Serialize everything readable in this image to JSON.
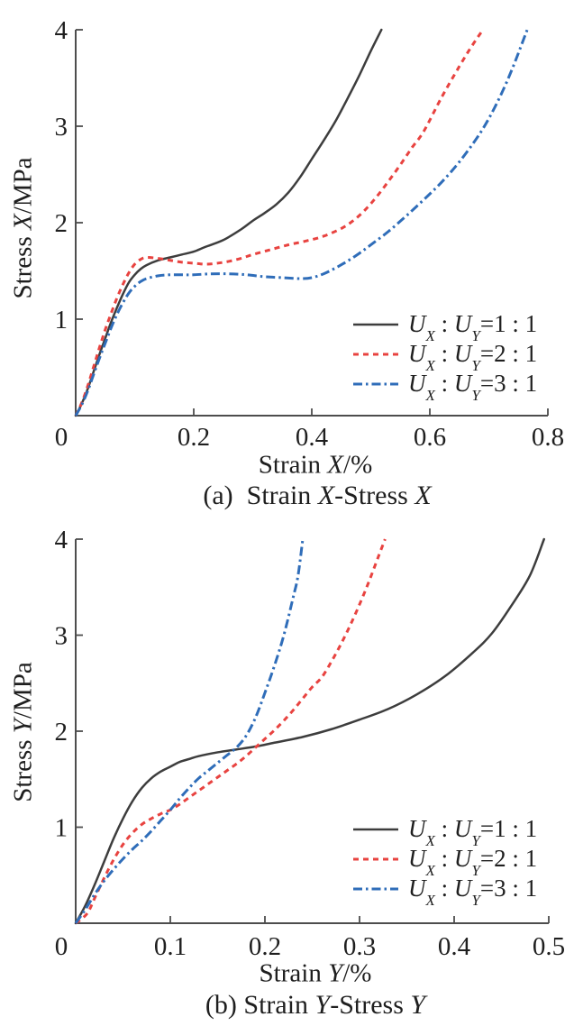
{
  "page": {
    "background": "#ffffff",
    "text_color": "#1f1f1f",
    "axis_color": "#4d4d4d"
  },
  "charts": [
    {
      "ylabel": {
        "pre": "Stress ",
        "var": "X",
        "post": "/MPa"
      },
      "xlabel": {
        "pre": "Strain ",
        "var": "X",
        "post": "/%"
      },
      "caption": {
        "prefix": "(a)  Strain ",
        "var1": "X",
        "mid": "-Stress ",
        "var2": "X"
      },
      "legend_items": [
        {
          "var1": "U",
          "sub1": "X",
          "sep": " : ",
          "var2": "U",
          "sub2": "Y",
          "value": "=1 : 1"
        },
        {
          "var1": "U",
          "sub1": "X",
          "sep": " : ",
          "var2": "U",
          "sub2": "Y",
          "value": "=2 : 1"
        },
        {
          "var1": "U",
          "sub1": "X",
          "sep": " : ",
          "var2": "U",
          "sub2": "Y",
          "value": "=3 : 1"
        }
      ]
    },
    {
      "ylabel": {
        "pre": "Stress ",
        "var": "Y",
        "post": "/MPa"
      },
      "xlabel": {
        "pre": "Strain ",
        "var": "Y",
        "post": "/%"
      },
      "caption": {
        "prefix": "(b) Strain ",
        "var1": "Y",
        "mid": "-Stress ",
        "var2": "Y"
      },
      "legend_items": [
        {
          "var1": "U",
          "sub1": "X",
          "sep": " : ",
          "var2": "U",
          "sub2": "Y",
          "value": "=1 : 1"
        },
        {
          "var1": "U",
          "sub1": "X",
          "sep": " : ",
          "var2": "U",
          "sub2": "Y",
          "value": "=2 : 1"
        },
        {
          "var1": "U",
          "sub1": "X",
          "sep": " : ",
          "var2": "U",
          "sub2": "Y",
          "value": "=3 : 1"
        }
      ]
    }
  ],
  "chart_data": [
    {
      "type": "line",
      "title": "(a) Strain X-Stress X",
      "xlabel": "Strain X/%",
      "ylabel": "Stress X/MPa",
      "xlim": [
        0,
        0.8
      ],
      "ylim": [
        0,
        4
      ],
      "x_ticks": [
        0,
        0.2,
        0.4,
        0.6,
        0.8
      ],
      "x_tick_labels": [
        "0",
        "0.2",
        "0.4",
        "0.6",
        "0.8"
      ],
      "y_ticks": [
        0,
        1,
        2,
        3,
        4
      ],
      "y_tick_labels": [
        "0",
        "1",
        "2",
        "3",
        "4"
      ],
      "grid": false,
      "legend_position": "inside lower right",
      "series": [
        {
          "name": "UX : UY=1 : 1",
          "line_style": "solid",
          "color": "#3d3d3d",
          "points": [
            [
              0,
              0
            ],
            [
              0.01,
              0.12
            ],
            [
              0.02,
              0.27
            ],
            [
              0.03,
              0.45
            ],
            [
              0.04,
              0.63
            ],
            [
              0.05,
              0.8
            ],
            [
              0.06,
              0.97
            ],
            [
              0.07,
              1.12
            ],
            [
              0.08,
              1.26
            ],
            [
              0.09,
              1.38
            ],
            [
              0.1,
              1.46
            ],
            [
              0.11,
              1.52
            ],
            [
              0.12,
              1.56
            ],
            [
              0.14,
              1.61
            ],
            [
              0.16,
              1.64
            ],
            [
              0.18,
              1.67
            ],
            [
              0.2,
              1.7
            ],
            [
              0.22,
              1.75
            ],
            [
              0.25,
              1.82
            ],
            [
              0.28,
              1.93
            ],
            [
              0.3,
              2.02
            ],
            [
              0.32,
              2.1
            ],
            [
              0.34,
              2.19
            ],
            [
              0.36,
              2.31
            ],
            [
              0.38,
              2.47
            ],
            [
              0.4,
              2.66
            ],
            [
              0.42,
              2.85
            ],
            [
              0.44,
              3.05
            ],
            [
              0.46,
              3.28
            ],
            [
              0.48,
              3.52
            ],
            [
              0.5,
              3.78
            ],
            [
              0.518,
              4.0
            ]
          ]
        },
        {
          "name": "UX : UY=2 : 1",
          "line_style": "dashed",
          "color": "#e84340",
          "points": [
            [
              0,
              0
            ],
            [
              0.01,
              0.13
            ],
            [
              0.02,
              0.3
            ],
            [
              0.03,
              0.5
            ],
            [
              0.04,
              0.7
            ],
            [
              0.05,
              0.89
            ],
            [
              0.06,
              1.06
            ],
            [
              0.07,
              1.22
            ],
            [
              0.08,
              1.36
            ],
            [
              0.09,
              1.48
            ],
            [
              0.1,
              1.57
            ],
            [
              0.11,
              1.62
            ],
            [
              0.12,
              1.64
            ],
            [
              0.14,
              1.63
            ],
            [
              0.16,
              1.61
            ],
            [
              0.18,
              1.59
            ],
            [
              0.2,
              1.58
            ],
            [
              0.22,
              1.57
            ],
            [
              0.24,
              1.58
            ],
            [
              0.26,
              1.6
            ],
            [
              0.28,
              1.63
            ],
            [
              0.3,
              1.67
            ],
            [
              0.33,
              1.72
            ],
            [
              0.36,
              1.77
            ],
            [
              0.39,
              1.81
            ],
            [
              0.42,
              1.86
            ],
            [
              0.45,
              1.94
            ],
            [
              0.47,
              2.02
            ],
            [
              0.49,
              2.13
            ],
            [
              0.51,
              2.27
            ],
            [
              0.53,
              2.43
            ],
            [
              0.55,
              2.6
            ],
            [
              0.57,
              2.78
            ],
            [
              0.59,
              2.95
            ],
            [
              0.62,
              3.3
            ],
            [
              0.65,
              3.62
            ],
            [
              0.67,
              3.82
            ],
            [
              0.69,
              4.0
            ]
          ]
        },
        {
          "name": "UX : UY=3 : 1",
          "line_style": "dash-dot",
          "color": "#2f6db9",
          "points": [
            [
              0,
              0
            ],
            [
              0.01,
              0.11
            ],
            [
              0.02,
              0.25
            ],
            [
              0.03,
              0.42
            ],
            [
              0.04,
              0.59
            ],
            [
              0.05,
              0.75
            ],
            [
              0.06,
              0.91
            ],
            [
              0.07,
              1.05
            ],
            [
              0.08,
              1.17
            ],
            [
              0.09,
              1.27
            ],
            [
              0.1,
              1.34
            ],
            [
              0.11,
              1.39
            ],
            [
              0.12,
              1.42
            ],
            [
              0.14,
              1.45
            ],
            [
              0.16,
              1.46
            ],
            [
              0.18,
              1.46
            ],
            [
              0.2,
              1.46
            ],
            [
              0.23,
              1.47
            ],
            [
              0.26,
              1.47
            ],
            [
              0.29,
              1.46
            ],
            [
              0.32,
              1.44
            ],
            [
              0.35,
              1.43
            ],
            [
              0.38,
              1.42
            ],
            [
              0.4,
              1.43
            ],
            [
              0.42,
              1.47
            ],
            [
              0.44,
              1.53
            ],
            [
              0.46,
              1.6
            ],
            [
              0.48,
              1.68
            ],
            [
              0.5,
              1.77
            ],
            [
              0.53,
              1.91
            ],
            [
              0.56,
              2.07
            ],
            [
              0.59,
              2.24
            ],
            [
              0.62,
              2.42
            ],
            [
              0.65,
              2.63
            ],
            [
              0.68,
              2.88
            ],
            [
              0.7,
              3.08
            ],
            [
              0.72,
              3.32
            ],
            [
              0.74,
              3.6
            ],
            [
              0.765,
              4.0
            ]
          ]
        }
      ]
    },
    {
      "type": "line",
      "title": "(b) Strain Y-Stress Y",
      "xlabel": "Strain Y/%",
      "ylabel": "Stress Y/MPa",
      "xlim": [
        0,
        0.5
      ],
      "ylim": [
        0,
        4
      ],
      "x_ticks": [
        0,
        0.1,
        0.2,
        0.3,
        0.4,
        0.5
      ],
      "x_tick_labels": [
        "0",
        "0.1",
        "0.2",
        "0.3",
        "0.4",
        "0.5"
      ],
      "y_ticks": [
        0,
        1,
        2,
        3,
        4
      ],
      "y_tick_labels": [
        "0",
        "1",
        "2",
        "3",
        "4"
      ],
      "grid": false,
      "legend_position": "inside lower right",
      "series": [
        {
          "name": "UX : UY=1 : 1",
          "line_style": "solid",
          "color": "#3d3d3d",
          "points": [
            [
              0,
              0
            ],
            [
              0.01,
              0.18
            ],
            [
              0.02,
              0.4
            ],
            [
              0.03,
              0.64
            ],
            [
              0.04,
              0.88
            ],
            [
              0.05,
              1.09
            ],
            [
              0.06,
              1.27
            ],
            [
              0.07,
              1.41
            ],
            [
              0.08,
              1.51
            ],
            [
              0.09,
              1.58
            ],
            [
              0.1,
              1.63
            ],
            [
              0.11,
              1.68
            ],
            [
              0.12,
              1.71
            ],
            [
              0.13,
              1.74
            ],
            [
              0.15,
              1.78
            ],
            [
              0.17,
              1.81
            ],
            [
              0.19,
              1.84
            ],
            [
              0.21,
              1.88
            ],
            [
              0.24,
              1.94
            ],
            [
              0.27,
              2.02
            ],
            [
              0.3,
              2.12
            ],
            [
              0.33,
              2.23
            ],
            [
              0.36,
              2.38
            ],
            [
              0.39,
              2.57
            ],
            [
              0.42,
              2.82
            ],
            [
              0.44,
              3.02
            ],
            [
              0.46,
              3.3
            ],
            [
              0.48,
              3.62
            ],
            [
              0.495,
              4.0
            ]
          ]
        },
        {
          "name": "UX : UY=2 : 1",
          "line_style": "dashed",
          "color": "#e84340",
          "points": [
            [
              0,
              0
            ],
            [
              0.012,
              0.1
            ],
            [
              0.02,
              0.26
            ],
            [
              0.03,
              0.47
            ],
            [
              0.04,
              0.66
            ],
            [
              0.05,
              0.82
            ],
            [
              0.06,
              0.94
            ],
            [
              0.07,
              1.03
            ],
            [
              0.08,
              1.09
            ],
            [
              0.09,
              1.14
            ],
            [
              0.1,
              1.18
            ],
            [
              0.11,
              1.24
            ],
            [
              0.12,
              1.31
            ],
            [
              0.13,
              1.38
            ],
            [
              0.14,
              1.45
            ],
            [
              0.15,
              1.52
            ],
            [
              0.16,
              1.59
            ],
            [
              0.17,
              1.66
            ],
            [
              0.18,
              1.74
            ],
            [
              0.19,
              1.83
            ],
            [
              0.2,
              1.92
            ],
            [
              0.21,
              2.01
            ],
            [
              0.22,
              2.11
            ],
            [
              0.23,
              2.22
            ],
            [
              0.24,
              2.34
            ],
            [
              0.25,
              2.46
            ],
            [
              0.26,
              2.56
            ],
            [
              0.27,
              2.72
            ],
            [
              0.28,
              2.9
            ],
            [
              0.29,
              3.1
            ],
            [
              0.3,
              3.32
            ],
            [
              0.31,
              3.56
            ],
            [
              0.32,
              3.82
            ],
            [
              0.327,
              4.0
            ]
          ]
        },
        {
          "name": "UX : UY=3 : 1",
          "line_style": "dash-dot",
          "color": "#2f6db9",
          "points": [
            [
              0,
              0
            ],
            [
              0.01,
              0.14
            ],
            [
              0.02,
              0.3
            ],
            [
              0.03,
              0.44
            ],
            [
              0.04,
              0.56
            ],
            [
              0.05,
              0.67
            ],
            [
              0.06,
              0.77
            ],
            [
              0.07,
              0.86
            ],
            [
              0.08,
              0.96
            ],
            [
              0.09,
              1.07
            ],
            [
              0.1,
              1.18
            ],
            [
              0.11,
              1.3
            ],
            [
              0.12,
              1.41
            ],
            [
              0.13,
              1.51
            ],
            [
              0.14,
              1.59
            ],
            [
              0.15,
              1.67
            ],
            [
              0.16,
              1.75
            ],
            [
              0.17,
              1.83
            ],
            [
              0.18,
              1.95
            ],
            [
              0.19,
              2.14
            ],
            [
              0.2,
              2.4
            ],
            [
              0.21,
              2.68
            ],
            [
              0.22,
              3.0
            ],
            [
              0.23,
              3.4
            ],
            [
              0.235,
              3.62
            ],
            [
              0.24,
              4.0
            ]
          ]
        }
      ]
    }
  ]
}
